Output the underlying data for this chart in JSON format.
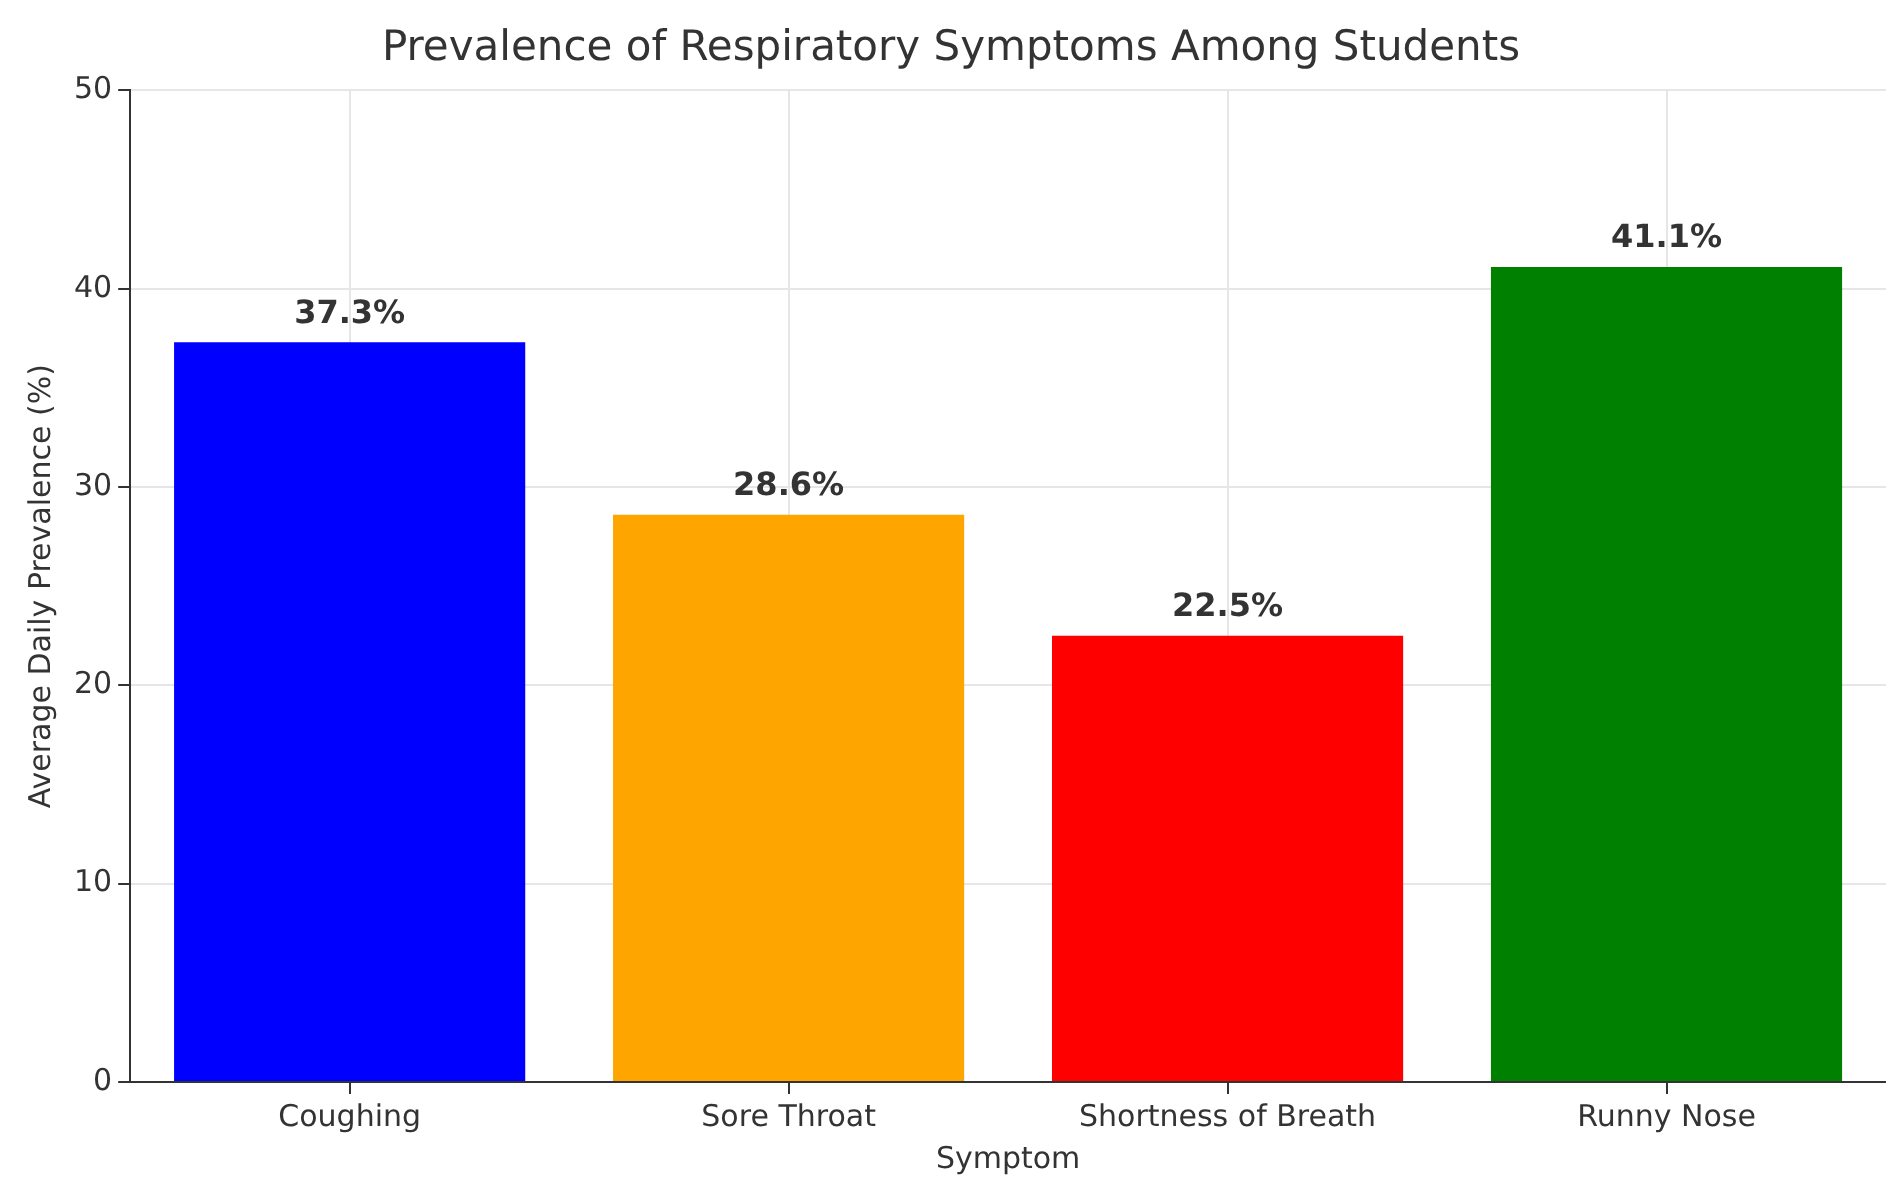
{
  "chart_data": {
    "type": "bar",
    "title": "Prevalence of Respiratory Symptoms Among Students",
    "xlabel": "Symptom",
    "ylabel": "Average Daily Prevalence (%)",
    "categories": [
      "Coughing",
      "Sore Throat",
      "Shortness of Breath",
      "Runny Nose"
    ],
    "values": [
      37.3,
      28.6,
      22.5,
      41.1
    ],
    "colors": [
      "#0000ff",
      "#ffa500",
      "#ff0000",
      "#008000"
    ],
    "value_labels": [
      "37.3%",
      "28.6%",
      "22.5%",
      "41.1%"
    ],
    "ylim": [
      0,
      50
    ],
    "yticks": [
      0,
      10,
      20,
      30,
      40,
      50
    ],
    "grid": true,
    "legend": false
  }
}
